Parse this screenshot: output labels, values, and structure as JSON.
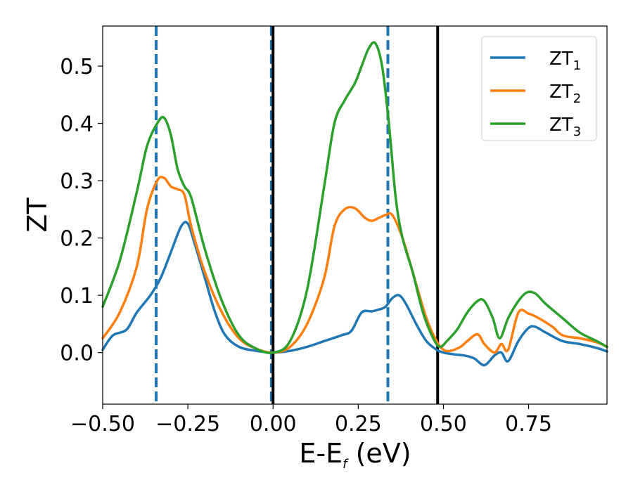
{
  "chart_data": {
    "type": "line",
    "xlabel": "E-E",
    "xlabel_sub": "f",
    "xlabel_unit": " (eV)",
    "ylabel": "ZT",
    "xlim": [
      -0.5,
      0.98
    ],
    "ylim": [
      -0.09,
      0.57
    ],
    "xticks": [
      -0.5,
      -0.25,
      0.0,
      0.25,
      0.5,
      0.75
    ],
    "xtick_labels": [
      "−0.50",
      "−0.25",
      "0.00",
      "0.25",
      "0.50",
      "0.75"
    ],
    "yticks": [
      0.0,
      0.1,
      0.2,
      0.3,
      0.4,
      0.5
    ],
    "ytick_labels": [
      "0.0",
      "0.1",
      "0.2",
      "0.3",
      "0.4",
      "0.5"
    ],
    "grid": false,
    "legend_position": "top-right",
    "vertical_lines": [
      {
        "x": -0.343,
        "style": "dashed",
        "color": "#1f77b4"
      },
      {
        "x": -0.005,
        "style": "dashed",
        "color": "#1f77b4"
      },
      {
        "x": 0.337,
        "style": "dashed",
        "color": "#1f77b4"
      },
      {
        "x": 0.0,
        "style": "solid",
        "color": "#000000"
      },
      {
        "x": 0.483,
        "style": "solid",
        "color": "#000000"
      }
    ],
    "series": [
      {
        "name": "ZT",
        "name_sub": "1",
        "color": "#1f77b4",
        "x": [
          -0.5,
          -0.47,
          -0.43,
          -0.4,
          -0.36,
          -0.33,
          -0.3,
          -0.27,
          -0.25,
          -0.23,
          -0.2,
          -0.17,
          -0.14,
          -0.1,
          -0.05,
          0.0,
          0.05,
          0.1,
          0.15,
          0.2,
          0.23,
          0.26,
          0.29,
          0.31,
          0.33,
          0.35,
          0.37,
          0.39,
          0.42,
          0.45,
          0.48,
          0.5,
          0.53,
          0.56,
          0.59,
          0.62,
          0.65,
          0.67,
          0.69,
          0.72,
          0.75,
          0.77,
          0.8,
          0.85,
          0.9,
          0.95,
          0.98
        ],
        "y": [
          0.005,
          0.03,
          0.04,
          0.07,
          0.1,
          0.13,
          0.175,
          0.22,
          0.225,
          0.19,
          0.13,
          0.07,
          0.03,
          0.01,
          0.003,
          0.0,
          0.003,
          0.01,
          0.02,
          0.03,
          0.038,
          0.07,
          0.072,
          0.075,
          0.08,
          0.095,
          0.1,
          0.085,
          0.05,
          0.02,
          0.005,
          0.0,
          -0.003,
          -0.005,
          -0.01,
          -0.022,
          -0.005,
          0.0,
          -0.015,
          0.02,
          0.043,
          0.045,
          0.035,
          0.02,
          0.015,
          0.008,
          0.002
        ]
      },
      {
        "name": "ZT",
        "name_sub": "2",
        "color": "#ff7f0e",
        "x": [
          -0.5,
          -0.45,
          -0.4,
          -0.37,
          -0.34,
          -0.32,
          -0.3,
          -0.28,
          -0.26,
          -0.24,
          -0.2,
          -0.15,
          -0.1,
          -0.05,
          0.0,
          0.05,
          0.1,
          0.15,
          0.18,
          0.21,
          0.24,
          0.27,
          0.29,
          0.31,
          0.33,
          0.35,
          0.38,
          0.41,
          0.45,
          0.48,
          0.5,
          0.52,
          0.55,
          0.57,
          0.6,
          0.62,
          0.65,
          0.67,
          0.69,
          0.72,
          0.75,
          0.78,
          0.82,
          0.85,
          0.9,
          0.95,
          0.98
        ],
        "y": [
          0.025,
          0.07,
          0.15,
          0.25,
          0.3,
          0.305,
          0.29,
          0.285,
          0.275,
          0.22,
          0.14,
          0.07,
          0.025,
          0.007,
          0.0,
          0.01,
          0.05,
          0.13,
          0.22,
          0.25,
          0.252,
          0.235,
          0.23,
          0.235,
          0.24,
          0.24,
          0.2,
          0.14,
          0.06,
          0.02,
          0.005,
          0.003,
          0.01,
          0.02,
          0.032,
          0.015,
          0.0,
          0.015,
          0.005,
          0.07,
          0.068,
          0.06,
          0.045,
          0.03,
          0.025,
          0.018,
          0.01
        ]
      },
      {
        "name": "ZT",
        "name_sub": "3",
        "color": "#2ca02c",
        "x": [
          -0.5,
          -0.45,
          -0.4,
          -0.37,
          -0.34,
          -0.32,
          -0.3,
          -0.28,
          -0.26,
          -0.24,
          -0.2,
          -0.15,
          -0.1,
          -0.05,
          0.0,
          0.05,
          0.1,
          0.15,
          0.18,
          0.21,
          0.24,
          0.26,
          0.28,
          0.3,
          0.32,
          0.34,
          0.36,
          0.38,
          0.41,
          0.44,
          0.47,
          0.49,
          0.51,
          0.54,
          0.57,
          0.6,
          0.62,
          0.645,
          0.665,
          0.69,
          0.72,
          0.745,
          0.77,
          0.8,
          0.85,
          0.9,
          0.95,
          0.98
        ],
        "y": [
          0.08,
          0.16,
          0.28,
          0.36,
          0.4,
          0.41,
          0.38,
          0.32,
          0.29,
          0.27,
          0.18,
          0.09,
          0.03,
          0.007,
          0.0,
          0.02,
          0.11,
          0.29,
          0.4,
          0.44,
          0.47,
          0.5,
          0.53,
          0.54,
          0.5,
          0.4,
          0.27,
          0.2,
          0.14,
          0.07,
          0.025,
          0.01,
          0.02,
          0.04,
          0.07,
          0.09,
          0.09,
          0.06,
          0.025,
          0.06,
          0.09,
          0.105,
          0.103,
          0.085,
          0.06,
          0.035,
          0.02,
          0.01
        ]
      }
    ]
  }
}
